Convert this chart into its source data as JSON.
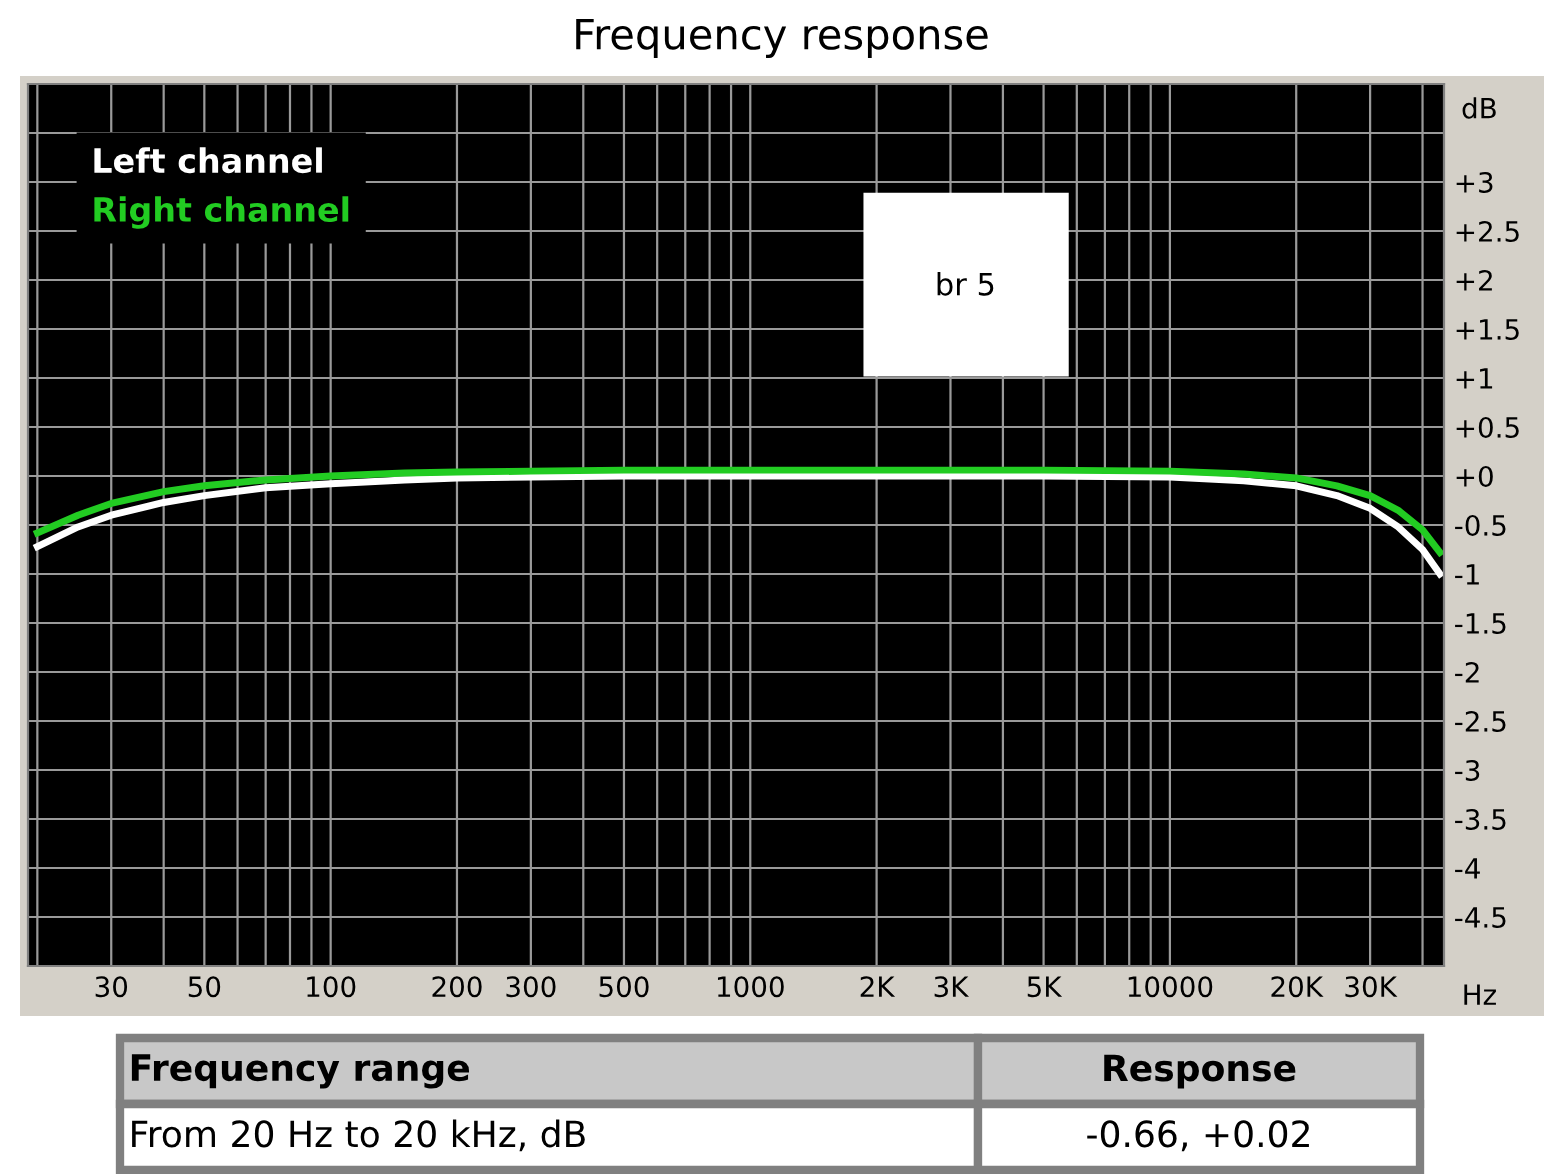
{
  "chart_data": {
    "type": "line",
    "title": "Frequency response",
    "xlabel": "Hz",
    "ylabel": "dB",
    "x": [
      20,
      25,
      30,
      40,
      50,
      70,
      100,
      150,
      200,
      300,
      500,
      1000,
      2000,
      5000,
      10000,
      15000,
      20000,
      25000,
      30000,
      35000,
      40000,
      44000
    ],
    "series": [
      {
        "name": "Left channel",
        "color": "#ffffff",
        "values": [
          -0.72,
          -0.52,
          -0.4,
          -0.27,
          -0.2,
          -0.12,
          -0.08,
          -0.04,
          -0.02,
          -0.01,
          0,
          0,
          0,
          0,
          -0.01,
          -0.05,
          -0.1,
          -0.2,
          -0.33,
          -0.52,
          -0.75,
          -1.0
        ]
      },
      {
        "name": "Right channel",
        "color": "#22cc22",
        "values": [
          -0.58,
          -0.4,
          -0.28,
          -0.16,
          -0.1,
          -0.04,
          0,
          0.03,
          0.04,
          0.05,
          0.06,
          0.06,
          0.06,
          0.06,
          0.05,
          0.02,
          -0.02,
          -0.1,
          -0.2,
          -0.35,
          -0.55,
          -0.78
        ]
      }
    ],
    "log": "x",
    "xlim": [
      19,
      45000
    ],
    "ylim": [
      -5,
      4
    ],
    "xticks": [
      {
        "value": 20,
        "label": null
      },
      30,
      {
        "value": 40,
        "label": null
      },
      50,
      {
        "value": 60,
        "label": null
      },
      {
        "value": 70,
        "label": null
      },
      {
        "value": 80,
        "label": null
      },
      {
        "value": 90,
        "label": null
      },
      100,
      200,
      300,
      {
        "value": 400,
        "label": null
      },
      500,
      {
        "value": 600,
        "label": null
      },
      {
        "value": 700,
        "label": null
      },
      {
        "value": 800,
        "label": null
      },
      {
        "value": 900,
        "label": null
      },
      1000,
      {
        "value": 2000,
        "label": "2K"
      },
      {
        "value": 3000,
        "label": "3K"
      },
      {
        "value": 4000,
        "label": null
      },
      {
        "value": 5000,
        "label": "5K"
      },
      {
        "value": 6000,
        "label": null
      },
      {
        "value": 7000,
        "label": null
      },
      {
        "value": 8000,
        "label": null
      },
      {
        "value": 9000,
        "label": null
      },
      10000,
      {
        "value": 20000,
        "label": "20K"
      },
      {
        "value": 30000,
        "label": "30K"
      },
      {
        "value": 40000,
        "label": null
      }
    ],
    "yticks": [
      {
        "value": 3.5,
        "label": null
      },
      {
        "value": 3,
        "label": "+3"
      },
      {
        "value": 2.5,
        "label": "+2.5"
      },
      {
        "value": 2,
        "label": "+2"
      },
      {
        "value": 1.5,
        "label": "+1.5"
      },
      {
        "value": 1,
        "label": "+1"
      },
      {
        "value": 0.5,
        "label": "+0.5"
      },
      {
        "value": 0,
        "label": "+0"
      },
      -0.5,
      -1,
      -1.5,
      -2,
      -2.5,
      -3,
      -3.5,
      -4,
      -4.5
    ],
    "grid": true,
    "legend": "top left",
    "marker": "none",
    "line_style": "solid",
    "annotations": [
      "br 5",
      "Frequency range",
      "Response",
      "From 20 Hz to 20 kHz, dB",
      "-0.66, +0.02"
    ]
  }
}
